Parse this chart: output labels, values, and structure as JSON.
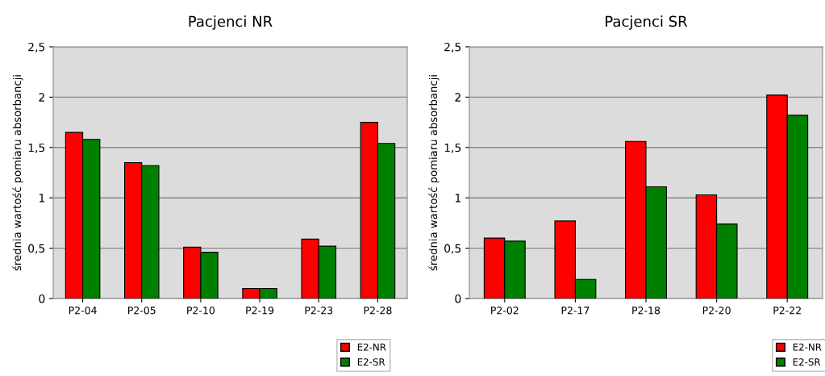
{
  "chart_data": [
    {
      "type": "bar",
      "title": "Pacjenci NR",
      "ylabel": "średnia wartość pomiaru absorbancji",
      "categories": [
        "P2-04",
        "P2-05",
        "P2-10",
        "P2-19",
        "P2-23",
        "P2-28"
      ],
      "series": [
        {
          "name": "E2-NR",
          "color": "#ff0000",
          "values": [
            1.65,
            1.35,
            0.51,
            0.1,
            0.59,
            1.75
          ]
        },
        {
          "name": "E2-SR",
          "color": "#008000",
          "values": [
            1.58,
            1.32,
            0.46,
            0.1,
            0.52,
            1.54
          ]
        }
      ],
      "ylim": [
        0,
        2.5
      ],
      "yticks": [
        0,
        {
          "value": 0.5,
          "label": "0,5"
        },
        1,
        {
          "value": 1.5,
          "label": "1,5"
        },
        2,
        {
          "value": 2.5,
          "label": "2,5"
        }
      ],
      "grid": "y",
      "legend": "bottom right"
    },
    {
      "type": "bar",
      "title": "Pacjenci SR",
      "ylabel": "średnia wartość pomiaru absorbancji",
      "categories": [
        "P2-02",
        "P2-17",
        "P2-18",
        "P2-20",
        "P2-22"
      ],
      "series": [
        {
          "name": "E2-NR",
          "color": "#ff0000",
          "values": [
            0.6,
            0.77,
            1.56,
            1.03,
            2.02
          ]
        },
        {
          "name": "E2-SR",
          "color": "#008000",
          "values": [
            0.57,
            0.19,
            1.11,
            0.74,
            1.82
          ]
        }
      ],
      "ylim": [
        0,
        2.5
      ],
      "yticks": [
        0,
        {
          "value": 0.5,
          "label": "0,5"
        },
        1,
        {
          "value": 1.5,
          "label": "1,5"
        },
        2,
        {
          "value": 2.5,
          "label": "2,5"
        }
      ],
      "grid": "y",
      "legend": "bottom right"
    }
  ]
}
